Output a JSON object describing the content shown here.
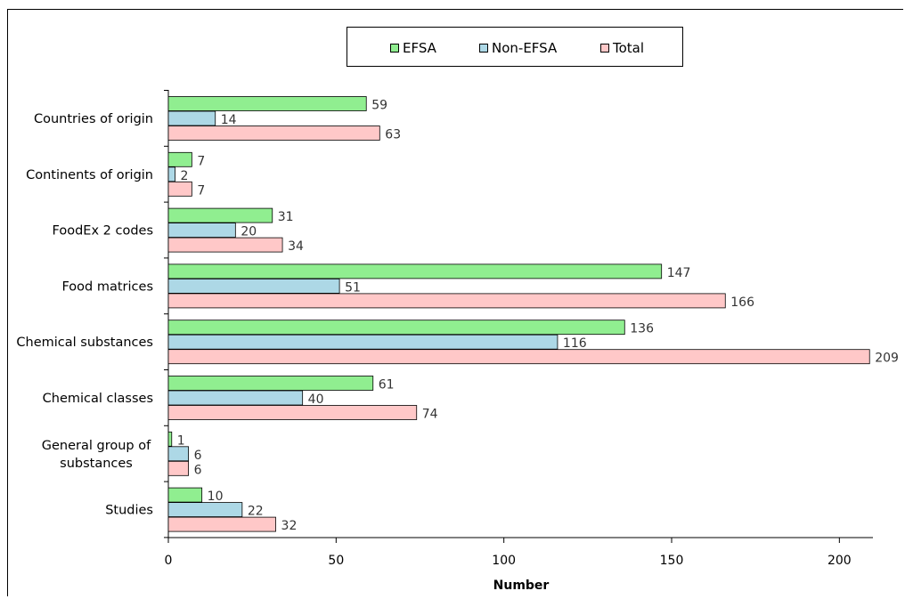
{
  "chart_data": {
    "type": "bar",
    "orientation": "horizontal",
    "categories": [
      "Countries of origin",
      "Continents of origin",
      "FoodEx 2 codes",
      "Food matrices",
      "Chemical substances",
      "Chemical classes",
      "General group of substances",
      "Studies"
    ],
    "series": [
      {
        "name": "EFSA",
        "color": "#90ee90",
        "values": [
          59,
          7,
          31,
          147,
          136,
          61,
          1,
          10
        ]
      },
      {
        "name": "Non-EFSA",
        "color": "#add8e6",
        "values": [
          14,
          2,
          20,
          51,
          116,
          40,
          6,
          22
        ]
      },
      {
        "name": "Total",
        "color": "#ffc8c8",
        "values": [
          63,
          7,
          34,
          166,
          209,
          74,
          6,
          32
        ]
      }
    ],
    "xlabel": "Number",
    "ylabel": "",
    "title": "",
    "xlim": [
      0,
      210
    ],
    "xticks": [
      0,
      50,
      100,
      150,
      200
    ],
    "legend_position": "top",
    "grid": false
  }
}
